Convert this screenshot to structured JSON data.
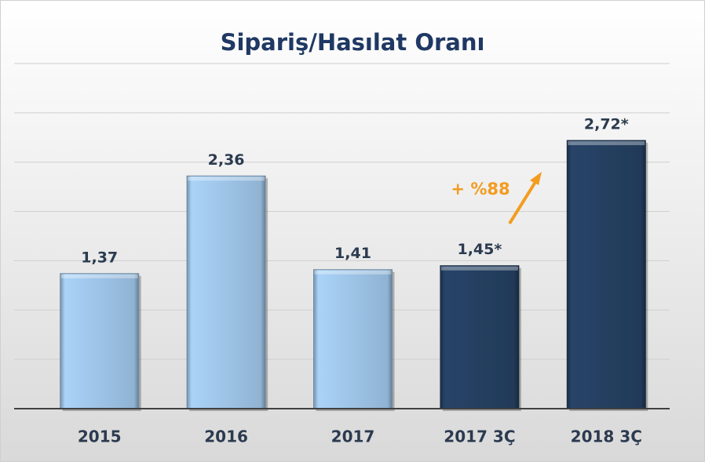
{
  "chart_data": {
    "type": "bar",
    "title": "Sipariş/Hasılat Oranı",
    "categories": [
      "2015",
      "2016",
      "2017",
      "2017 3Ç",
      "2018 3Ç"
    ],
    "values": [
      1.37,
      2.36,
      1.41,
      1.45,
      2.72
    ],
    "value_labels": [
      "1,37",
      "2,36",
      "1,41",
      "1,45*",
      "2,72*"
    ],
    "colors": [
      "#9dc3e6",
      "#9dc3e6",
      "#9dc3e6",
      "#243f60",
      "#243f60"
    ],
    "ylim": [
      0,
      3.5
    ],
    "yticks": [
      0,
      0.5,
      1,
      1.5,
      2,
      2.5,
      3,
      3.5
    ],
    "grid": true,
    "annotation": "+ %88",
    "annotation_color": "#f39c1f"
  }
}
